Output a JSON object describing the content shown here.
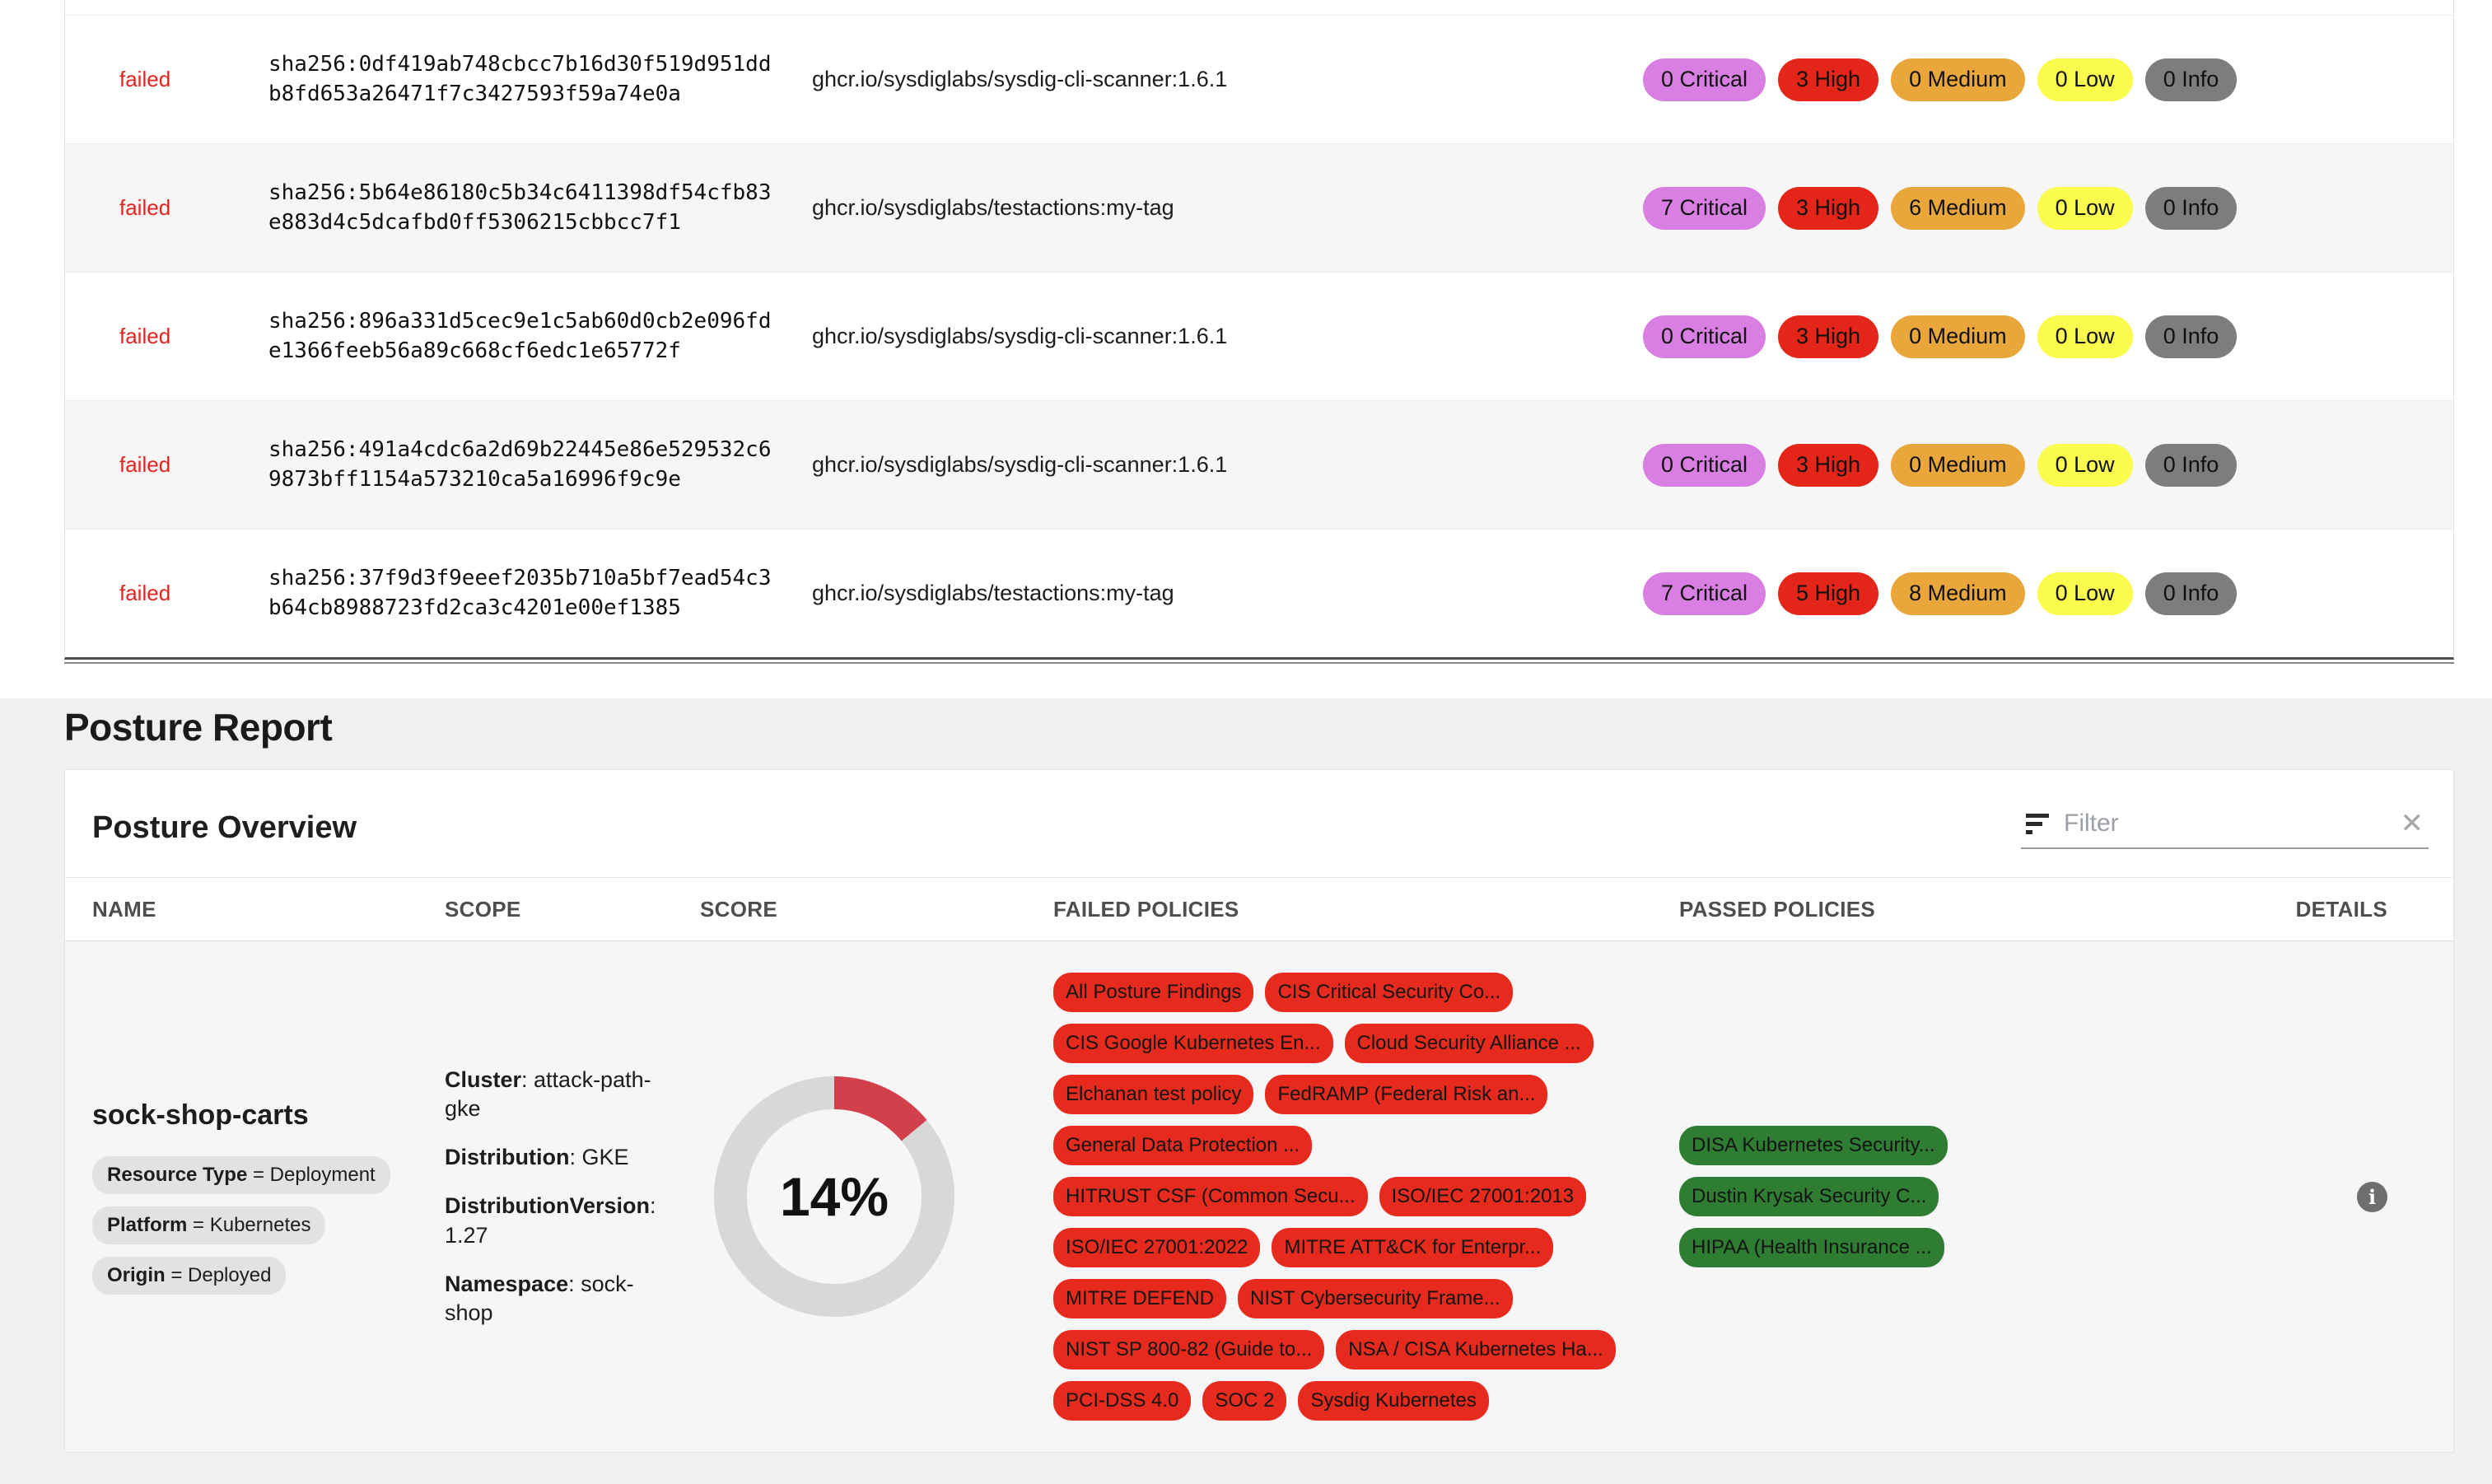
{
  "scan_results": {
    "rows": [
      {
        "status": "failed",
        "digest": "sha256:0df419ab748cbcc7b16d30f519d951ddb8fd653a26471f7c3427593f59a74e0a",
        "image": "ghcr.io/sysdiglabs/sysdig-cli-scanner:1.6.1",
        "severities": {
          "critical": "0 Critical",
          "high": "3 High",
          "medium": "0 Medium",
          "low": "0 Low",
          "info": "0 Info"
        }
      },
      {
        "status": "failed",
        "digest": "sha256:5b64e86180c5b34c6411398df54cfb83e883d4c5dcafbd0ff5306215cbbcc7f1",
        "image": "ghcr.io/sysdiglabs/testactions:my-tag",
        "severities": {
          "critical": "7 Critical",
          "high": "3 High",
          "medium": "6 Medium",
          "low": "0 Low",
          "info": "0 Info"
        }
      },
      {
        "status": "failed",
        "digest": "sha256:896a331d5cec9e1c5ab60d0cb2e096fde1366feeb56a89c668cf6edc1e65772f",
        "image": "ghcr.io/sysdiglabs/sysdig-cli-scanner:1.6.1",
        "severities": {
          "critical": "0 Critical",
          "high": "3 High",
          "medium": "0 Medium",
          "low": "0 Low",
          "info": "0 Info"
        }
      },
      {
        "status": "failed",
        "digest": "sha256:491a4cdc6a2d69b22445e86e529532c69873bff1154a573210ca5a16996f9c9e",
        "image": "ghcr.io/sysdiglabs/sysdig-cli-scanner:1.6.1",
        "severities": {
          "critical": "0 Critical",
          "high": "3 High",
          "medium": "0 Medium",
          "low": "0 Low",
          "info": "0 Info"
        }
      },
      {
        "status": "failed",
        "digest": "sha256:37f9d3f9eeef2035b710a5bf7ead54c3b64cb8988723fd2ca3c4201e00ef1385",
        "image": "ghcr.io/sysdiglabs/testactions:my-tag",
        "severities": {
          "critical": "7 Critical",
          "high": "5 High",
          "medium": "8 Medium",
          "low": "0 Low",
          "info": "0 Info"
        }
      }
    ]
  },
  "posture": {
    "section_title": "Posture Report",
    "card_title": "Posture Overview",
    "filter": {
      "placeholder": "Filter",
      "clear_label": "✕"
    },
    "columns": [
      "NAME",
      "SCOPE",
      "SCORE",
      "FAILED POLICIES",
      "PASSED POLICIES",
      "DETAILS"
    ],
    "row": {
      "name": "sock-shop-carts",
      "tags": [
        {
          "key": "Resource Type",
          "value": "Deployment"
        },
        {
          "key": "Platform",
          "value": "Kubernetes"
        },
        {
          "key": "Origin",
          "value": "Deployed"
        }
      ],
      "scope": [
        {
          "key": "Cluster",
          "value": "attack-path-gke"
        },
        {
          "key": "Distribution",
          "value": "GKE"
        },
        {
          "key": "DistributionVersion",
          "value": "1.27"
        },
        {
          "key": "Namespace",
          "value": "sock-shop"
        }
      ],
      "score_percent": 14,
      "score_label": "14%",
      "failed_policies": [
        "All Posture Findings",
        "CIS Critical Security Co...",
        "CIS Google Kubernetes En...",
        "Cloud Security Alliance ...",
        "Elchanan test policy",
        "FedRAMP (Federal Risk an...",
        "General Data Protection ...",
        "HITRUST CSF (Common Secu...",
        "ISO/IEC 27001:2013",
        "ISO/IEC 27001:2022",
        "MITRE ATT&CK for Enterpr...",
        "MITRE DEFEND",
        "NIST Cybersecurity Frame...",
        "NIST SP 800-82 (Guide to...",
        "NSA / CISA Kubernetes Ha...",
        "PCI-DSS 4.0",
        "SOC 2",
        "Sysdig Kubernetes"
      ],
      "passed_policies": [
        "DISA Kubernetes Security...",
        "Dustin Krysak Security C...",
        "HIPAA (Health Insurance ..."
      ],
      "details_icon": "i"
    }
  },
  "colors": {
    "status_failed": "#e8231d",
    "severity": {
      "critical": "#d97ee2",
      "high": "#e3251a",
      "medium": "#e9a63a",
      "low": "#fbfb4e",
      "info": "#7d7d7d"
    },
    "failed_policy": "#e62b1e",
    "passed_policy": "#2e7d32",
    "score_red": "#d2404b",
    "score_track": "#d8d8d8"
  }
}
